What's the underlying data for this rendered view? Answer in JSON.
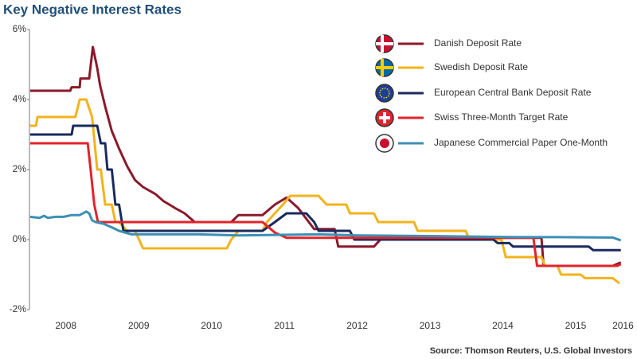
{
  "chart_data": {
    "type": "line",
    "title": "Key Negative Interest Rates",
    "source": "Source: Thomson Reuters, U.S. Global Investors",
    "xlim": [
      2008,
      2016.2
    ],
    "xticks": [
      {
        "value": 2008.5,
        "label": "2008"
      },
      {
        "value": 2009.5,
        "label": "2009"
      },
      {
        "value": 2010.5,
        "label": "2010"
      },
      {
        "value": 2011.5,
        "label": "2011"
      },
      {
        "value": 2012.5,
        "label": "2012"
      },
      {
        "value": 2013.5,
        "label": "2013"
      },
      {
        "value": 2014.5,
        "label": "2014"
      },
      {
        "value": 2015.5,
        "label": "2015"
      },
      {
        "value": 2016.15,
        "label": "2016"
      }
    ],
    "ylim": [
      -2,
      6
    ],
    "yticks": [
      {
        "value": -2,
        "label": "-2%"
      },
      {
        "value": 0,
        "label": "0%"
      },
      {
        "value": 2,
        "label": "2%"
      },
      {
        "value": 4,
        "label": "4%"
      },
      {
        "value": 6,
        "label": "6%"
      }
    ],
    "grid": false,
    "legend": "top-right",
    "series": [
      {
        "name": "Danish Deposit Rate",
        "color": "#8b1a2b",
        "x": [
          2008.01,
          2008.56,
          2008.58,
          2008.69,
          2008.7,
          2008.82,
          2008.87,
          2008.93,
          2008.97,
          2009.04,
          2009.13,
          2009.23,
          2009.34,
          2009.45,
          2009.56,
          2009.73,
          2009.84,
          2010.0,
          2010.13,
          2010.27,
          2010.77,
          2010.87,
          2011.2,
          2011.37,
          2011.53,
          2011.69,
          2011.91,
          2012.19,
          2012.24,
          2012.73,
          2012.84,
          2015.03,
          2015.06,
          2016.01,
          2016.12
        ],
        "values": [
          4.25,
          4.25,
          4.35,
          4.35,
          4.6,
          4.6,
          5.5,
          4.9,
          4.4,
          3.8,
          3.1,
          2.6,
          2.1,
          1.7,
          1.5,
          1.3,
          1.1,
          0.9,
          0.75,
          0.5,
          0.5,
          0.7,
          0.7,
          1.0,
          1.2,
          0.9,
          0.3,
          0.3,
          -0.2,
          -0.2,
          0.05,
          0.05,
          -0.75,
          -0.75,
          -0.65
        ]
      },
      {
        "name": "Swedish Deposit Rate",
        "color": "#f2b31b",
        "x": [
          2008.01,
          2008.09,
          2008.11,
          2008.63,
          2008.66,
          2008.69,
          2008.78,
          2008.82,
          2008.86,
          2008.93,
          2008.98,
          2009.04,
          2009.13,
          2009.18,
          2009.23,
          2009.34,
          2009.45,
          2009.56,
          2010.71,
          2010.77,
          2010.87,
          2011.2,
          2011.26,
          2011.37,
          2011.48,
          2011.58,
          2011.97,
          2012.08,
          2012.35,
          2012.4,
          2012.73,
          2012.79,
          2013.28,
          2013.33,
          2013.99,
          2014.04,
          2014.48,
          2014.54,
          2015.03,
          2015.08,
          2015.25,
          2015.3,
          2015.57,
          2015.63,
          2016.01,
          2016.1
        ],
        "values": [
          3.25,
          3.25,
          3.5,
          3.5,
          3.75,
          4.0,
          4.0,
          3.75,
          3.5,
          2.0,
          2.0,
          1.0,
          1.0,
          0.5,
          0.5,
          0.25,
          0.25,
          -0.25,
          -0.25,
          0.0,
          0.25,
          0.25,
          0.5,
          0.75,
          1.0,
          1.25,
          1.25,
          1.0,
          1.0,
          0.75,
          0.75,
          0.5,
          0.5,
          0.25,
          0.25,
          0.0,
          0.0,
          -0.5,
          -0.5,
          -0.75,
          -0.75,
          -1.0,
          -1.0,
          -1.1,
          -1.1,
          -1.25
        ]
      },
      {
        "name": "European Central Bank Deposit Rate",
        "color": "#1a2a5e",
        "x": [
          2008.01,
          2008.58,
          2008.6,
          2008.93,
          2008.98,
          2009.04,
          2009.07,
          2009.13,
          2009.18,
          2009.23,
          2009.29,
          2011.2,
          2011.37,
          2011.53,
          2011.8,
          2011.91,
          2011.97,
          2012.4,
          2012.46,
          2014.37,
          2014.43,
          2014.59,
          2014.64,
          2015.68,
          2015.74,
          2016.12
        ],
        "values": [
          3.0,
          3.0,
          3.25,
          3.25,
          2.75,
          2.75,
          2.0,
          2.0,
          1.0,
          1.0,
          0.25,
          0.25,
          0.5,
          0.75,
          0.75,
          0.5,
          0.25,
          0.25,
          0.0,
          0.0,
          -0.1,
          -0.1,
          -0.2,
          -0.2,
          -0.3,
          -0.3
        ]
      },
      {
        "name": "Swiss Three-Month Target Rate",
        "color": "#e0242a",
        "x": [
          2008.01,
          2008.8,
          2008.84,
          2008.89,
          2008.94,
          2011.2,
          2011.37,
          2011.53,
          2014.92,
          2014.97,
          2016.07,
          2016.12
        ],
        "values": [
          2.75,
          2.75,
          2.0,
          1.0,
          0.5,
          0.5,
          0.2,
          0.05,
          0.05,
          -0.75,
          -0.75,
          -0.7
        ]
      },
      {
        "name": "Japanese Commercial Paper One-Month",
        "color": "#3d8fb5",
        "x": [
          2008.01,
          2008.14,
          2008.2,
          2008.25,
          2008.36,
          2008.47,
          2008.58,
          2008.69,
          2008.78,
          2008.82,
          2008.86,
          2008.91,
          2009.02,
          2009.13,
          2009.23,
          2009.4,
          2010.33,
          2010.87,
          2011.97,
          2012.51,
          2013.61,
          2014.7,
          2015.25,
          2016.01,
          2016.12
        ],
        "values": [
          0.65,
          0.62,
          0.68,
          0.62,
          0.65,
          0.65,
          0.7,
          0.7,
          0.8,
          0.75,
          0.55,
          0.5,
          0.45,
          0.35,
          0.25,
          0.15,
          0.15,
          0.12,
          0.15,
          0.12,
          0.1,
          0.07,
          0.07,
          0.06,
          -0.02
        ]
      }
    ]
  }
}
